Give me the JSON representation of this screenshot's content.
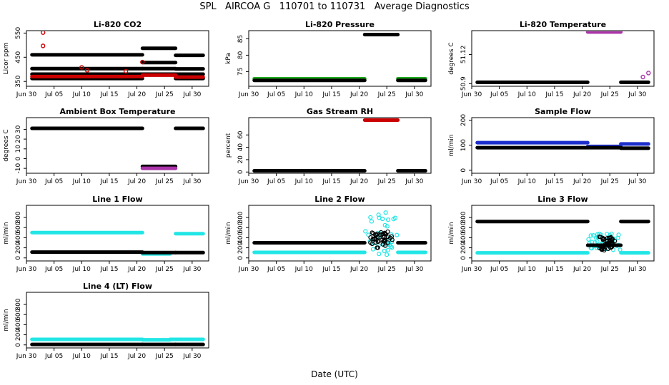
{
  "suptitle": "SPL   AIRCOA G   110701 to 110731   Average Diagnostics",
  "xlabel": "Date (UTC)",
  "chart_data": [
    {
      "type": "scatter",
      "title": "Li-820 CO2",
      "ylabel": "Licor ppm",
      "xlim": [
        "Jun 30",
        "Aug 02"
      ],
      "ylim": [
        330,
        560
      ],
      "yticks": [
        350,
        450,
        550
      ],
      "xticks": [
        "Jun 30",
        "Jul 05",
        "Jul 10",
        "Jul 15",
        "Jul 20",
        "Jul 25",
        "Jul 30"
      ],
      "series": [
        {
          "color": "#000000",
          "segments": [
            {
              "x": [
                "Jul 01",
                "Jul 21"
              ],
              "y": 460
            },
            {
              "x": [
                "Jul 01",
                "Jul 21"
              ],
              "y": 403
            },
            {
              "x": [
                "Jul 01",
                "Jul 21"
              ],
              "y": 380
            },
            {
              "x": [
                "Jul 01",
                "Jul 21"
              ],
              "y": 362
            },
            {
              "x": [
                "Jul 21",
                "Jul 27"
              ],
              "y": 487
            },
            {
              "x": [
                "Jul 21",
                "Jul 27"
              ],
              "y": 428
            },
            {
              "x": [
                "Jul 21",
                "Jul 27"
              ],
              "y": 403
            },
            {
              "x": [
                "Jul 21",
                "Jul 27"
              ],
              "y": 380
            },
            {
              "x": [
                "Jul 27",
                "Aug 01"
              ],
              "y": 458
            },
            {
              "x": [
                "Jul 27",
                "Aug 01"
              ],
              "y": 402
            },
            {
              "x": [
                "Jul 27",
                "Aug 01"
              ],
              "y": 380
            },
            {
              "x": [
                "Jul 27",
                "Aug 01"
              ],
              "y": 362
            }
          ]
        },
        {
          "color": "#cc0000",
          "segments": [
            {
              "x": [
                "Jul 01",
                "Jul 21"
              ],
              "y": 370
            },
            {
              "x": [
                "Jul 21",
                "Jul 27"
              ],
              "y": 376
            },
            {
              "x": [
                "Jul 27",
                "Aug 01"
              ],
              "y": 368
            }
          ],
          "points": [
            {
              "x": "Jul 03",
              "y": 552
            },
            {
              "x": "Jul 03",
              "y": 497
            },
            {
              "x": "Jul 10",
              "y": 408
            },
            {
              "x": "Jul 11",
              "y": 396
            },
            {
              "x": "Jul 18",
              "y": 392
            },
            {
              "x": "Jul 21",
              "y": 430
            }
          ]
        }
      ]
    },
    {
      "type": "scatter",
      "title": "Li-820 Pressure",
      "ylabel": "kPa",
      "xlim": [
        "Jun 30",
        "Aug 02"
      ],
      "ylim": [
        70.5,
        87.5
      ],
      "yticks": [
        75,
        80,
        85
      ],
      "xticks": [
        "Jun 30",
        "Jul 05",
        "Jul 10",
        "Jul 15",
        "Jul 20",
        "Jul 25",
        "Jul 30"
      ],
      "series": [
        {
          "color": "#22aa22",
          "segments": [
            {
              "x": [
                "Jul 01",
                "Jul 21"
              ],
              "y": 72.8
            },
            {
              "x": [
                "Jul 27",
                "Aug 01"
              ],
              "y": 72.8
            }
          ]
        },
        {
          "color": "#000000",
          "segments": [
            {
              "x": [
                "Jul 01",
                "Jul 21"
              ],
              "y": 72.3
            },
            {
              "x": [
                "Jul 21",
                "Jul 27"
              ],
              "y": 86.3
            },
            {
              "x": [
                "Jul 27",
                "Aug 01"
              ],
              "y": 72.3
            }
          ]
        }
      ]
    },
    {
      "type": "scatter",
      "title": "Li-820 Temperature",
      "ylabel": "degrees C",
      "xlim": [
        "Jun 30",
        "Aug 02"
      ],
      "ylim": [
        50.88,
        51.3
      ],
      "yticks": [
        50.9,
        51.12
      ],
      "xticks": [
        "Jun 30",
        "Jul 05",
        "Jul 10",
        "Jul 15",
        "Jul 20",
        "Jul 25",
        "Jul 30"
      ],
      "series": [
        {
          "color": "#000000",
          "segments": [
            {
              "x": [
                "Jul 01",
                "Jul 21"
              ],
              "y": 50.91
            },
            {
              "x": [
                "Jul 27",
                "Aug 01"
              ],
              "y": 50.91
            }
          ]
        },
        {
          "color": "#aa33aa",
          "segments": [
            {
              "x": [
                "Jul 21",
                "Jul 27"
              ],
              "y": 51.29
            }
          ],
          "points": [
            {
              "x": "Jul 31",
              "y": 50.95
            },
            {
              "x": "Aug 01",
              "y": 50.98
            }
          ]
        }
      ]
    },
    {
      "type": "scatter",
      "title": "Ambient Box Temperature",
      "ylabel": "degrees C",
      "xlim": [
        "Jun 30",
        "Aug 02"
      ],
      "ylim": [
        -15,
        42
      ],
      "yticks": [
        -10,
        0,
        10,
        20,
        30
      ],
      "xticks": [
        "Jun 30",
        "Jul 05",
        "Jul 10",
        "Jul 15",
        "Jul 20",
        "Jul 25",
        "Jul 30"
      ],
      "series": [
        {
          "color": "#000000",
          "segments": [
            {
              "x": [
                "Jul 01",
                "Jul 21"
              ],
              "y": 31
            },
            {
              "x": [
                "Jul 21",
                "Jul 27"
              ],
              "y": -8
            },
            {
              "x": [
                "Jul 27",
                "Aug 01"
              ],
              "y": 31
            }
          ]
        },
        {
          "color": "#aa33aa",
          "segments": [
            {
              "x": [
                "Jul 21",
                "Jul 27"
              ],
              "y": -10
            }
          ]
        }
      ]
    },
    {
      "type": "scatter",
      "title": "Gas Stream RH",
      "ylabel": "percent",
      "xlim": [
        "Jun 30",
        "Aug 02"
      ],
      "ylim": [
        -2,
        88
      ],
      "yticks": [
        0,
        20,
        40,
        60
      ],
      "xticks": [
        "Jun 30",
        "Jul 05",
        "Jul 10",
        "Jul 15",
        "Jul 20",
        "Jul 25",
        "Jul 30"
      ],
      "series": [
        {
          "color": "#000000",
          "segments": [
            {
              "x": [
                "Jul 01",
                "Jul 21"
              ],
              "y": 2
            },
            {
              "x": [
                "Jul 27",
                "Aug 01"
              ],
              "y": 2
            }
          ]
        },
        {
          "color": "#cc0000",
          "segments": [
            {
              "x": [
                "Jul 21",
                "Jul 27"
              ],
              "y": 84
            }
          ]
        }
      ]
    },
    {
      "type": "scatter",
      "title": "Sample Flow",
      "ylabel": "ml/min",
      "xlim": [
        "Jun 30",
        "Aug 02"
      ],
      "ylim": [
        -12,
        210
      ],
      "yticks": [
        0,
        100,
        200
      ],
      "xticks": [
        "Jun 30",
        "Jul 05",
        "Jul 10",
        "Jul 15",
        "Jul 20",
        "Jul 25",
        "Jul 30"
      ],
      "series": [
        {
          "color": "#1c2fcc",
          "segments": [
            {
              "x": [
                "Jul 01",
                "Jul 21"
              ],
              "y": 110
            },
            {
              "x": [
                "Jul 21",
                "Jul 27"
              ],
              "y": 95
            },
            {
              "x": [
                "Jul 27",
                "Aug 01"
              ],
              "y": 105
            }
          ]
        },
        {
          "color": "#000000",
          "segments": [
            {
              "x": [
                "Jul 01",
                "Jul 21"
              ],
              "y": 90
            },
            {
              "x": [
                "Jul 21",
                "Jul 27"
              ],
              "y": 90
            },
            {
              "x": [
                "Jul 27",
                "Aug 01"
              ],
              "y": 88
            }
          ]
        }
      ]
    },
    {
      "type": "scatter",
      "title": "Line 1 Flow",
      "ylabel": "ml/min",
      "xlim": [
        "Jun 30",
        "Aug 02"
      ],
      "ylim": [
        -60,
        1040
      ],
      "yticks": [
        0,
        200,
        400,
        600,
        800
      ],
      "xticks": [
        "Jun 30",
        "Jul 05",
        "Jul 10",
        "Jul 15",
        "Jul 20",
        "Jul 25",
        "Jul 30"
      ],
      "series": [
        {
          "color": "#22e6e6",
          "segments": [
            {
              "x": [
                "Jul 01",
                "Jul 21"
              ],
              "y": 500
            },
            {
              "x": [
                "Jul 21",
                "Jul 26"
              ],
              "y": 80
            },
            {
              "x": [
                "Jul 27",
                "Aug 01"
              ],
              "y": 480
            }
          ]
        },
        {
          "color": "#000000",
          "segments": [
            {
              "x": [
                "Jul 01",
                "Jul 21"
              ],
              "y": 115
            },
            {
              "x": [
                "Jul 21",
                "Jul 27"
              ],
              "y": 105
            },
            {
              "x": [
                "Jul 27",
                "Aug 01"
              ],
              "y": 105
            }
          ]
        }
      ]
    },
    {
      "type": "scatter",
      "title": "Line 2 Flow",
      "ylabel": "ml/min",
      "xlim": [
        "Jun 30",
        "Aug 02"
      ],
      "ylim": [
        -60,
        1040
      ],
      "yticks": [
        0,
        200,
        400,
        600,
        800
      ],
      "xticks": [
        "Jun 30",
        "Jul 05",
        "Jul 10",
        "Jul 15",
        "Jul 20",
        "Jul 25",
        "Jul 30"
      ],
      "series": [
        {
          "color": "#22e6e6",
          "segments": [
            {
              "x": [
                "Jul 01",
                "Jul 21"
              ],
              "y": 110
            },
            {
              "x": [
                "Jul 27",
                "Aug 01"
              ],
              "y": 110
            }
          ],
          "scatter": {
            "x": [
              "Jul 21",
              "Jul 27"
            ],
            "y": [
              60,
              900
            ]
          }
        },
        {
          "color": "#000000",
          "segments": [
            {
              "x": [
                "Jul 01",
                "Jul 21"
              ],
              "y": 300
            },
            {
              "x": [
                "Jul 27",
                "Aug 01"
              ],
              "y": 300
            }
          ],
          "scatter": {
            "x": [
              "Jul 22",
              "Jul 26"
            ],
            "y": [
              200,
              520
            ]
          }
        }
      ]
    },
    {
      "type": "scatter",
      "title": "Line 3 Flow",
      "ylabel": "ml/min",
      "xlim": [
        "Jun 30",
        "Aug 02"
      ],
      "ylim": [
        -60,
        1040
      ],
      "yticks": [
        0,
        200,
        400,
        600,
        800
      ],
      "xticks": [
        "Jun 30",
        "Jul 05",
        "Jul 10",
        "Jul 15",
        "Jul 20",
        "Jul 25",
        "Jul 30"
      ],
      "series": [
        {
          "color": "#22e6e6",
          "segments": [
            {
              "x": [
                "Jul 01",
                "Jul 21"
              ],
              "y": 100
            },
            {
              "x": [
                "Jul 27",
                "Aug 01"
              ],
              "y": 100
            }
          ],
          "scatter": {
            "x": [
              "Jul 21",
              "Jul 27"
            ],
            "y": [
              150,
              480
            ]
          }
        },
        {
          "color": "#000000",
          "segments": [
            {
              "x": [
                "Jul 01",
                "Jul 21"
              ],
              "y": 720
            },
            {
              "x": [
                "Jul 21",
                "Jul 27"
              ],
              "y": 250
            },
            {
              "x": [
                "Jul 27",
                "Aug 01"
              ],
              "y": 720
            }
          ],
          "scatter": {
            "x": [
              "Jul 23",
              "Jul 26"
            ],
            "y": [
              150,
              420
            ]
          }
        }
      ]
    },
    {
      "type": "scatter",
      "title": "Line 4 (LT) Flow",
      "ylabel": "ml/min",
      "xlim": [
        "Jun 30",
        "Aug 02"
      ],
      "ylim": [
        -60,
        1040
      ],
      "yticks": [
        0,
        200,
        400,
        600,
        800
      ],
      "xticks": [
        "Jun 30",
        "Jul 05",
        "Jul 10",
        "Jul 15",
        "Jul 20",
        "Jul 25",
        "Jul 30"
      ],
      "series": [
        {
          "color": "#22e6e6",
          "segments": [
            {
              "x": [
                "Jul 01",
                "Jul 21"
              ],
              "y": 110
            },
            {
              "x": [
                "Jul 21",
                "Jul 26"
              ],
              "y": 100
            },
            {
              "x": [
                "Jul 26",
                "Aug 01"
              ],
              "y": 110
            }
          ]
        },
        {
          "color": "#000000",
          "segments": [
            {
              "x": [
                "Jul 01",
                "Jul 21"
              ],
              "y": 8
            },
            {
              "x": [
                "Jul 21",
                "Jul 27"
              ],
              "y": 8
            },
            {
              "x": [
                "Jul 27",
                "Aug 01"
              ],
              "y": 8
            }
          ]
        }
      ]
    }
  ]
}
